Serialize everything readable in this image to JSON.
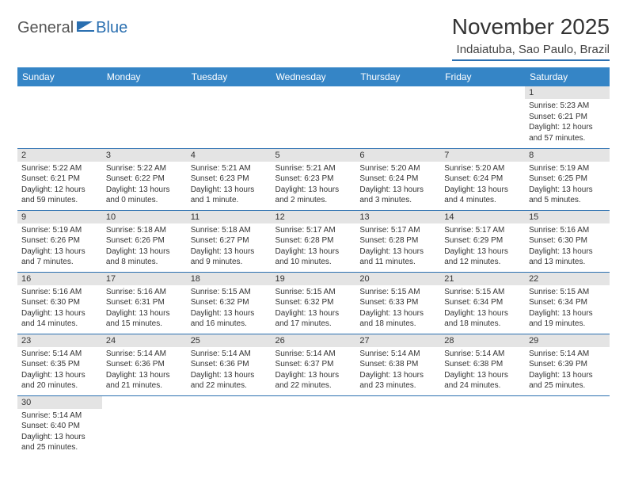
{
  "logo": {
    "part1": "General",
    "part2": "Blue"
  },
  "title": "November 2025",
  "location": "Indaiatuba, Sao Paulo, Brazil",
  "header_bg": "#3585c6",
  "rule_color": "#2a6fb0",
  "daynum_bg": "#e4e4e4",
  "dow": [
    "Sunday",
    "Monday",
    "Tuesday",
    "Wednesday",
    "Thursday",
    "Friday",
    "Saturday"
  ],
  "weeks": [
    [
      null,
      null,
      null,
      null,
      null,
      null,
      {
        "n": "1",
        "sr": "Sunrise: 5:23 AM",
        "ss": "Sunset: 6:21 PM",
        "dl": "Daylight: 12 hours and 57 minutes."
      }
    ],
    [
      {
        "n": "2",
        "sr": "Sunrise: 5:22 AM",
        "ss": "Sunset: 6:21 PM",
        "dl": "Daylight: 12 hours and 59 minutes."
      },
      {
        "n": "3",
        "sr": "Sunrise: 5:22 AM",
        "ss": "Sunset: 6:22 PM",
        "dl": "Daylight: 13 hours and 0 minutes."
      },
      {
        "n": "4",
        "sr": "Sunrise: 5:21 AM",
        "ss": "Sunset: 6:23 PM",
        "dl": "Daylight: 13 hours and 1 minute."
      },
      {
        "n": "5",
        "sr": "Sunrise: 5:21 AM",
        "ss": "Sunset: 6:23 PM",
        "dl": "Daylight: 13 hours and 2 minutes."
      },
      {
        "n": "6",
        "sr": "Sunrise: 5:20 AM",
        "ss": "Sunset: 6:24 PM",
        "dl": "Daylight: 13 hours and 3 minutes."
      },
      {
        "n": "7",
        "sr": "Sunrise: 5:20 AM",
        "ss": "Sunset: 6:24 PM",
        "dl": "Daylight: 13 hours and 4 minutes."
      },
      {
        "n": "8",
        "sr": "Sunrise: 5:19 AM",
        "ss": "Sunset: 6:25 PM",
        "dl": "Daylight: 13 hours and 5 minutes."
      }
    ],
    [
      {
        "n": "9",
        "sr": "Sunrise: 5:19 AM",
        "ss": "Sunset: 6:26 PM",
        "dl": "Daylight: 13 hours and 7 minutes."
      },
      {
        "n": "10",
        "sr": "Sunrise: 5:18 AM",
        "ss": "Sunset: 6:26 PM",
        "dl": "Daylight: 13 hours and 8 minutes."
      },
      {
        "n": "11",
        "sr": "Sunrise: 5:18 AM",
        "ss": "Sunset: 6:27 PM",
        "dl": "Daylight: 13 hours and 9 minutes."
      },
      {
        "n": "12",
        "sr": "Sunrise: 5:17 AM",
        "ss": "Sunset: 6:28 PM",
        "dl": "Daylight: 13 hours and 10 minutes."
      },
      {
        "n": "13",
        "sr": "Sunrise: 5:17 AM",
        "ss": "Sunset: 6:28 PM",
        "dl": "Daylight: 13 hours and 11 minutes."
      },
      {
        "n": "14",
        "sr": "Sunrise: 5:17 AM",
        "ss": "Sunset: 6:29 PM",
        "dl": "Daylight: 13 hours and 12 minutes."
      },
      {
        "n": "15",
        "sr": "Sunrise: 5:16 AM",
        "ss": "Sunset: 6:30 PM",
        "dl": "Daylight: 13 hours and 13 minutes."
      }
    ],
    [
      {
        "n": "16",
        "sr": "Sunrise: 5:16 AM",
        "ss": "Sunset: 6:30 PM",
        "dl": "Daylight: 13 hours and 14 minutes."
      },
      {
        "n": "17",
        "sr": "Sunrise: 5:16 AM",
        "ss": "Sunset: 6:31 PM",
        "dl": "Daylight: 13 hours and 15 minutes."
      },
      {
        "n": "18",
        "sr": "Sunrise: 5:15 AM",
        "ss": "Sunset: 6:32 PM",
        "dl": "Daylight: 13 hours and 16 minutes."
      },
      {
        "n": "19",
        "sr": "Sunrise: 5:15 AM",
        "ss": "Sunset: 6:32 PM",
        "dl": "Daylight: 13 hours and 17 minutes."
      },
      {
        "n": "20",
        "sr": "Sunrise: 5:15 AM",
        "ss": "Sunset: 6:33 PM",
        "dl": "Daylight: 13 hours and 18 minutes."
      },
      {
        "n": "21",
        "sr": "Sunrise: 5:15 AM",
        "ss": "Sunset: 6:34 PM",
        "dl": "Daylight: 13 hours and 18 minutes."
      },
      {
        "n": "22",
        "sr": "Sunrise: 5:15 AM",
        "ss": "Sunset: 6:34 PM",
        "dl": "Daylight: 13 hours and 19 minutes."
      }
    ],
    [
      {
        "n": "23",
        "sr": "Sunrise: 5:14 AM",
        "ss": "Sunset: 6:35 PM",
        "dl": "Daylight: 13 hours and 20 minutes."
      },
      {
        "n": "24",
        "sr": "Sunrise: 5:14 AM",
        "ss": "Sunset: 6:36 PM",
        "dl": "Daylight: 13 hours and 21 minutes."
      },
      {
        "n": "25",
        "sr": "Sunrise: 5:14 AM",
        "ss": "Sunset: 6:36 PM",
        "dl": "Daylight: 13 hours and 22 minutes."
      },
      {
        "n": "26",
        "sr": "Sunrise: 5:14 AM",
        "ss": "Sunset: 6:37 PM",
        "dl": "Daylight: 13 hours and 22 minutes."
      },
      {
        "n": "27",
        "sr": "Sunrise: 5:14 AM",
        "ss": "Sunset: 6:38 PM",
        "dl": "Daylight: 13 hours and 23 minutes."
      },
      {
        "n": "28",
        "sr": "Sunrise: 5:14 AM",
        "ss": "Sunset: 6:38 PM",
        "dl": "Daylight: 13 hours and 24 minutes."
      },
      {
        "n": "29",
        "sr": "Sunrise: 5:14 AM",
        "ss": "Sunset: 6:39 PM",
        "dl": "Daylight: 13 hours and 25 minutes."
      }
    ],
    [
      {
        "n": "30",
        "sr": "Sunrise: 5:14 AM",
        "ss": "Sunset: 6:40 PM",
        "dl": "Daylight: 13 hours and 25 minutes."
      },
      null,
      null,
      null,
      null,
      null,
      null
    ]
  ]
}
